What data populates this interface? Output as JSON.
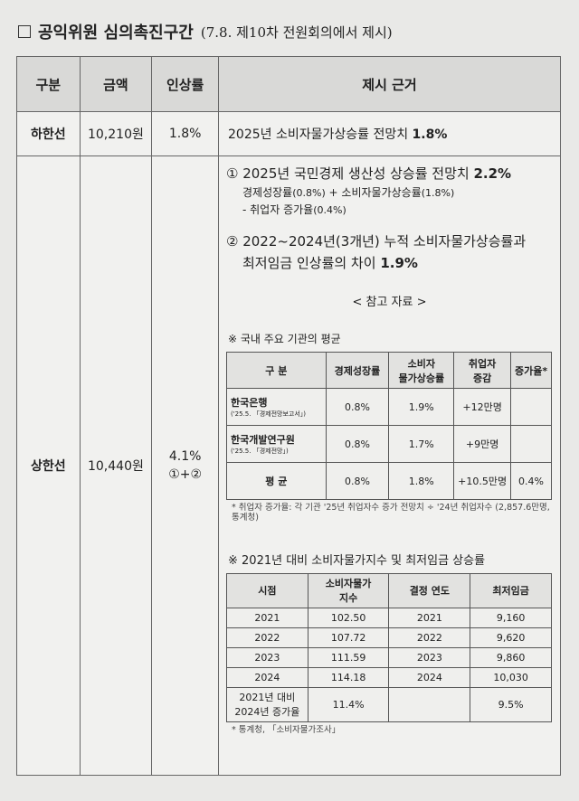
{
  "title": {
    "main": "공익위원 심의촉진구간",
    "sub": "(7.8. 제10차 전원회의에서 제시)"
  },
  "headers": [
    "구분",
    "금액",
    "인상률",
    "제시 근거"
  ],
  "lower": {
    "label": "하한선",
    "amount": "10,210원",
    "rate": "1.8%",
    "basis": "2025년 소비자물가상승률 전망치",
    "basis_value": "1.8%"
  },
  "upper": {
    "label": "상한선",
    "amount": "10,440원",
    "rate": "4.1%",
    "rate_formula": "①+②",
    "item1": {
      "text": "① 2025년 국민경제 생산성 상승률 전망치",
      "value": "2.2%",
      "detail1a": "경제성장률",
      "detail1b": "(0.8%)",
      "detail1c": " + 소비자물가상승률",
      "detail1d": "(1.8%)",
      "detail2a": "- 취업자 증가율",
      "detail2b": "(0.4%)"
    },
    "item2": {
      "line1": "② 2022~2024년(3개년) 누적 소비자물가상승률과",
      "line2": "최저임금 인상률의 차이",
      "value": "1.9%"
    },
    "reference": "< 참고 자료 >",
    "table1": {
      "title": "※ 국내 주요 기관의 평균",
      "headers": [
        "구 분",
        "경제성장률",
        "소비자\n물가상승률",
        "취업자\n증감",
        "증가율*"
      ],
      "rows": [
        {
          "org": "한국은행",
          "src": "('25.5. 「경제전망보고서」)",
          "growth": "0.8%",
          "cpi": "1.9%",
          "emp": "+12만명",
          "rate": ""
        },
        {
          "org": "한국개발연구원",
          "src": "('25.5. 「경제전망」)",
          "growth": "0.8%",
          "cpi": "1.7%",
          "emp": "+9만명",
          "rate": ""
        },
        {
          "org": "평 균",
          "src": "",
          "growth": "0.8%",
          "cpi": "1.8%",
          "emp": "+10.5만명",
          "rate": "0.4%"
        }
      ],
      "note": "* 취업자 증가율: 각 기관 '25년 취업자수 증가 전망치 ÷ '24년 취업자수 (2,857.6만명, 통계청)"
    },
    "table2": {
      "title": "※ 2021년 대비 소비자물가지수 및 최저임금 상승률",
      "headers": [
        "시점",
        "소비자물가\n지수",
        "결정 연도",
        "최저임금"
      ],
      "rows": [
        [
          "2021",
          "102.50",
          "2021",
          "9,160"
        ],
        [
          "2022",
          "107.72",
          "2022",
          "9,620"
        ],
        [
          "2023",
          "111.59",
          "2023",
          "9,860"
        ],
        [
          "2024",
          "114.18",
          "2024",
          "10,030"
        ],
        [
          "2021년 대비\n2024년 증가율",
          "11.4%",
          "",
          "9.5%"
        ]
      ],
      "note": "* 통계청, 「소비자물가조사」"
    }
  }
}
